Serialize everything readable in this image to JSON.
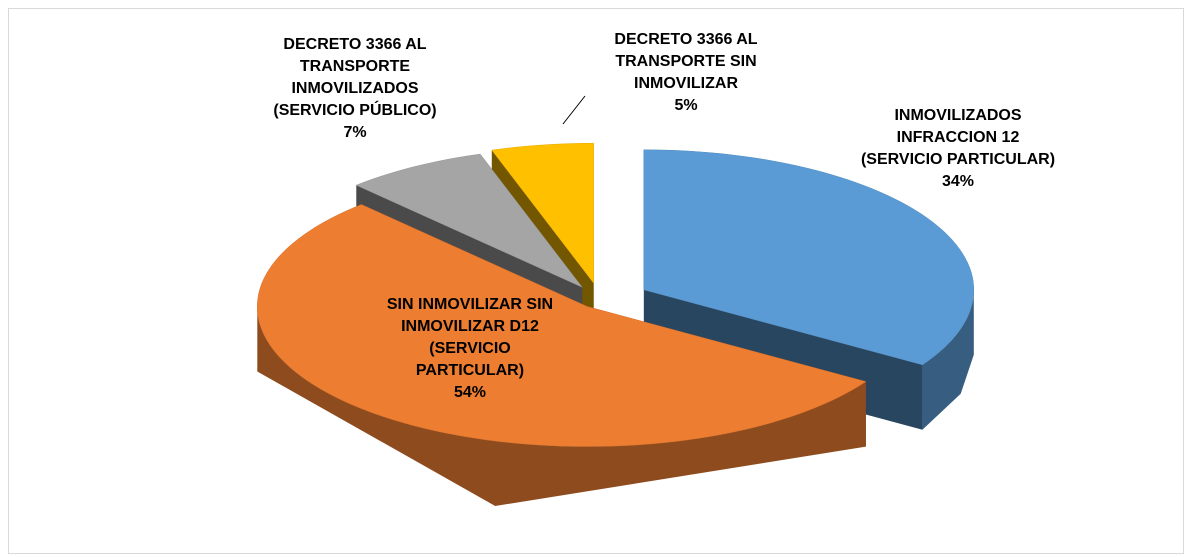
{
  "chart_data": {
    "type": "pie3d",
    "categories": [
      "INMOVILIZADOS INFRACCION 12 (SERVICIO PARTICULAR)",
      "SIN INMOVILIZAR SIN INMOVILIZAR D12 (SERVICIO PARTICULAR)",
      "DECRETO 3366 AL TRANSPORTE INMOVILIZADOS (SERVICIO PÚBLICO)",
      "DECRETO 3366 AL TRANSPORTE SIN INMOVILIZAR"
    ],
    "values": [
      34,
      54,
      7,
      5
    ],
    "value_labels": [
      "34%",
      "54%",
      "7%",
      "5%"
    ],
    "colors": [
      "#5b9bd5",
      "#ed7d31",
      "#a5a5a5",
      "#ffc000"
    ]
  }
}
